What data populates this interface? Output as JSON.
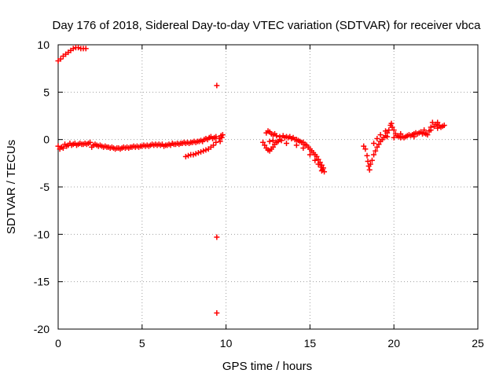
{
  "chart_data": {
    "type": "scatter",
    "title": "Day 176 of 2018, Sidereal Day-to-day VTEC variation (SDTVAR) for receiver vbca",
    "xlabel": "GPS time / hours",
    "ylabel": "SDTVAR / TECUs",
    "xlim": [
      0,
      25
    ],
    "ylim": [
      -20,
      10
    ],
    "grid": true,
    "marker": "+",
    "color": "#ff0000",
    "xticks": [
      "0",
      "5",
      "10",
      "15",
      "20",
      "25"
    ],
    "yticks": [
      "10",
      "5",
      "0",
      "-5",
      "-10",
      "-15",
      "-20"
    ],
    "series": [
      {
        "name": "SDTVAR",
        "points": [
          [
            0.0,
            8.3
          ],
          [
            0.15,
            8.5
          ],
          [
            0.3,
            8.8
          ],
          [
            0.45,
            9.0
          ],
          [
            0.6,
            9.2
          ],
          [
            0.75,
            9.4
          ],
          [
            0.9,
            9.6
          ],
          [
            1.05,
            9.7
          ],
          [
            1.2,
            9.7
          ],
          [
            1.35,
            9.6
          ],
          [
            1.5,
            9.6
          ],
          [
            1.65,
            9.6
          ],
          [
            0.0,
            -0.7
          ],
          [
            0.1,
            -1.0
          ],
          [
            0.2,
            -0.8
          ],
          [
            0.3,
            -0.9
          ],
          [
            0.4,
            -0.5
          ],
          [
            0.5,
            -0.7
          ],
          [
            0.6,
            -0.6
          ],
          [
            0.7,
            -0.4
          ],
          [
            0.8,
            -0.6
          ],
          [
            0.9,
            -0.5
          ],
          [
            1.0,
            -0.4
          ],
          [
            1.1,
            -0.6
          ],
          [
            1.2,
            -0.5
          ],
          [
            1.3,
            -0.4
          ],
          [
            1.4,
            -0.5
          ],
          [
            1.5,
            -0.5
          ],
          [
            1.6,
            -0.4
          ],
          [
            1.7,
            -0.5
          ],
          [
            1.8,
            -0.4
          ],
          [
            1.9,
            -0.3
          ],
          [
            2.0,
            -0.8
          ],
          [
            2.1,
            -0.6
          ],
          [
            2.2,
            -0.5
          ],
          [
            2.3,
            -0.6
          ],
          [
            2.4,
            -0.7
          ],
          [
            2.5,
            -0.6
          ],
          [
            2.6,
            -0.7
          ],
          [
            2.7,
            -0.8
          ],
          [
            2.8,
            -0.7
          ],
          [
            2.9,
            -0.8
          ],
          [
            3.0,
            -0.8
          ],
          [
            3.1,
            -0.9
          ],
          [
            3.2,
            -0.8
          ],
          [
            3.3,
            -0.9
          ],
          [
            3.4,
            -1.0
          ],
          [
            3.5,
            -0.9
          ],
          [
            3.6,
            -0.9
          ],
          [
            3.7,
            -1.0
          ],
          [
            3.8,
            -0.9
          ],
          [
            3.9,
            -0.8
          ],
          [
            4.0,
            -0.9
          ],
          [
            4.1,
            -0.8
          ],
          [
            4.2,
            -0.9
          ],
          [
            4.3,
            -0.8
          ],
          [
            4.4,
            -0.8
          ],
          [
            4.5,
            -0.7
          ],
          [
            4.6,
            -0.8
          ],
          [
            4.7,
            -0.7
          ],
          [
            4.8,
            -0.8
          ],
          [
            4.9,
            -0.7
          ],
          [
            5.0,
            -0.7
          ],
          [
            5.1,
            -0.6
          ],
          [
            5.2,
            -0.7
          ],
          [
            5.3,
            -0.6
          ],
          [
            5.4,
            -0.7
          ],
          [
            5.5,
            -0.6
          ],
          [
            5.6,
            -0.5
          ],
          [
            5.7,
            -0.6
          ],
          [
            5.8,
            -0.5
          ],
          [
            5.9,
            -0.6
          ],
          [
            6.0,
            -0.5
          ],
          [
            6.1,
            -0.6
          ],
          [
            6.2,
            -0.5
          ],
          [
            6.3,
            -0.7
          ],
          [
            6.4,
            -0.6
          ],
          [
            6.5,
            -0.6
          ],
          [
            6.6,
            -0.5
          ],
          [
            6.7,
            -0.6
          ],
          [
            6.8,
            -0.4
          ],
          [
            6.9,
            -0.5
          ],
          [
            7.0,
            -0.5
          ],
          [
            7.1,
            -0.4
          ],
          [
            7.2,
            -0.5
          ],
          [
            7.3,
            -0.4
          ],
          [
            7.4,
            -0.4
          ],
          [
            7.5,
            -0.3
          ],
          [
            7.6,
            -0.4
          ],
          [
            7.7,
            -0.3
          ],
          [
            7.8,
            -0.4
          ],
          [
            7.9,
            -0.3
          ],
          [
            8.0,
            -0.3
          ],
          [
            8.1,
            -0.2
          ],
          [
            8.2,
            -0.3
          ],
          [
            8.3,
            -0.2
          ],
          [
            8.4,
            -0.2
          ],
          [
            8.5,
            -0.1
          ],
          [
            8.6,
            -0.2
          ],
          [
            8.7,
            0.0
          ],
          [
            8.8,
            0.1
          ],
          [
            8.9,
            0.0
          ],
          [
            9.0,
            0.2
          ],
          [
            9.1,
            0.3
          ],
          [
            9.2,
            0.1
          ],
          [
            9.3,
            0.2
          ],
          [
            9.4,
            0.3
          ],
          [
            7.6,
            -1.8
          ],
          [
            7.75,
            -1.7
          ],
          [
            7.9,
            -1.6
          ],
          [
            8.05,
            -1.6
          ],
          [
            8.2,
            -1.5
          ],
          [
            8.35,
            -1.4
          ],
          [
            8.5,
            -1.3
          ],
          [
            8.65,
            -1.2
          ],
          [
            8.8,
            -1.1
          ],
          [
            8.95,
            -1.0
          ],
          [
            9.1,
            -0.8
          ],
          [
            9.25,
            -0.6
          ],
          [
            9.4,
            -0.3
          ],
          [
            9.45,
            5.7
          ],
          [
            9.45,
            -10.3
          ],
          [
            9.45,
            -18.3
          ],
          [
            9.6,
            0.1
          ],
          [
            9.7,
            0.4
          ],
          [
            9.75,
            0.2
          ],
          [
            9.8,
            0.5
          ],
          [
            9.65,
            -0.2
          ],
          [
            12.2,
            -0.3
          ],
          [
            12.3,
            -0.6
          ],
          [
            12.4,
            -0.9
          ],
          [
            12.5,
            -1.1
          ],
          [
            12.6,
            -1.2
          ],
          [
            12.7,
            -1.0
          ],
          [
            12.8,
            -0.8
          ],
          [
            12.9,
            -0.5
          ],
          [
            13.0,
            -0.3
          ],
          [
            13.1,
            -0.2
          ],
          [
            13.2,
            0.0
          ],
          [
            13.3,
            -0.1
          ],
          [
            12.4,
            0.7
          ],
          [
            12.5,
            0.9
          ],
          [
            12.6,
            0.8
          ],
          [
            12.7,
            0.6
          ],
          [
            12.8,
            0.5
          ],
          [
            12.9,
            0.6
          ],
          [
            13.0,
            0.4
          ],
          [
            13.2,
            0.3
          ],
          [
            13.4,
            0.4
          ],
          [
            13.5,
            0.2
          ],
          [
            13.6,
            0.3
          ],
          [
            13.7,
            0.2
          ],
          [
            13.8,
            0.3
          ],
          [
            13.9,
            0.1
          ],
          [
            14.0,
            0.2
          ],
          [
            14.1,
            0.0
          ],
          [
            14.2,
            0.0
          ],
          [
            14.3,
            -0.1
          ],
          [
            14.4,
            -0.2
          ],
          [
            14.5,
            -0.3
          ],
          [
            14.6,
            -0.3
          ],
          [
            14.7,
            -0.5
          ],
          [
            14.8,
            -0.6
          ],
          [
            14.9,
            -0.8
          ],
          [
            15.0,
            -1.0
          ],
          [
            15.1,
            -1.2
          ],
          [
            15.2,
            -1.4
          ],
          [
            15.3,
            -1.6
          ],
          [
            15.4,
            -1.8
          ],
          [
            15.5,
            -2.1
          ],
          [
            15.6,
            -2.4
          ],
          [
            15.7,
            -2.7
          ],
          [
            15.8,
            -3.0
          ],
          [
            15.85,
            -3.4
          ],
          [
            15.75,
            -3.2
          ],
          [
            15.65,
            -2.9
          ],
          [
            12.6,
            -0.2
          ],
          [
            12.8,
            -0.1
          ],
          [
            13.6,
            -0.4
          ],
          [
            14.2,
            -0.6
          ],
          [
            14.6,
            -0.9
          ],
          [
            15.0,
            -1.6
          ],
          [
            15.3,
            -2.2
          ],
          [
            15.5,
            -2.6
          ],
          [
            15.7,
            -3.3
          ],
          [
            18.2,
            -0.7
          ],
          [
            18.3,
            -1.0
          ],
          [
            18.4,
            -1.7
          ],
          [
            18.45,
            -2.3
          ],
          [
            18.5,
            -2.8
          ],
          [
            18.55,
            -3.2
          ],
          [
            18.6,
            -2.6
          ],
          [
            18.7,
            -2.2
          ],
          [
            18.8,
            -1.6
          ],
          [
            18.9,
            -1.2
          ],
          [
            19.0,
            -0.8
          ],
          [
            19.1,
            -0.5
          ],
          [
            19.2,
            -0.2
          ],
          [
            19.3,
            0.0
          ],
          [
            19.4,
            0.2
          ],
          [
            19.5,
            0.4
          ],
          [
            19.6,
            0.7
          ],
          [
            19.7,
            1.0
          ],
          [
            19.8,
            1.5
          ],
          [
            19.85,
            1.7
          ],
          [
            19.9,
            1.3
          ],
          [
            20.0,
            1.0
          ],
          [
            20.1,
            0.6
          ],
          [
            20.2,
            0.4
          ],
          [
            20.3,
            0.3
          ],
          [
            20.4,
            0.2
          ],
          [
            20.5,
            0.3
          ],
          [
            20.6,
            0.2
          ],
          [
            20.7,
            0.3
          ],
          [
            20.8,
            0.4
          ],
          [
            20.9,
            0.5
          ],
          [
            21.0,
            0.4
          ],
          [
            21.1,
            0.5
          ],
          [
            21.2,
            0.6
          ],
          [
            21.3,
            0.7
          ],
          [
            21.4,
            0.6
          ],
          [
            21.5,
            0.7
          ],
          [
            21.6,
            0.8
          ],
          [
            21.7,
            0.6
          ],
          [
            21.8,
            0.7
          ],
          [
            21.9,
            0.6
          ],
          [
            22.0,
            0.5
          ],
          [
            22.1,
            0.9
          ],
          [
            22.2,
            1.3
          ],
          [
            22.3,
            1.8
          ],
          [
            22.4,
            1.4
          ],
          [
            22.5,
            1.6
          ],
          [
            22.6,
            1.2
          ],
          [
            22.7,
            1.5
          ],
          [
            22.8,
            1.3
          ],
          [
            22.9,
            1.4
          ],
          [
            23.0,
            1.5
          ],
          [
            22.2,
            1.0
          ],
          [
            22.6,
            1.8
          ],
          [
            19.2,
            0.5
          ],
          [
            19.5,
            0.9
          ],
          [
            19.6,
            0.3
          ],
          [
            20.0,
            0.2
          ],
          [
            20.4,
            0.6
          ],
          [
            18.8,
            -0.4
          ],
          [
            19.0,
            0.1
          ],
          [
            21.2,
            0.3
          ],
          [
            21.8,
            1.0
          ]
        ]
      }
    ]
  }
}
